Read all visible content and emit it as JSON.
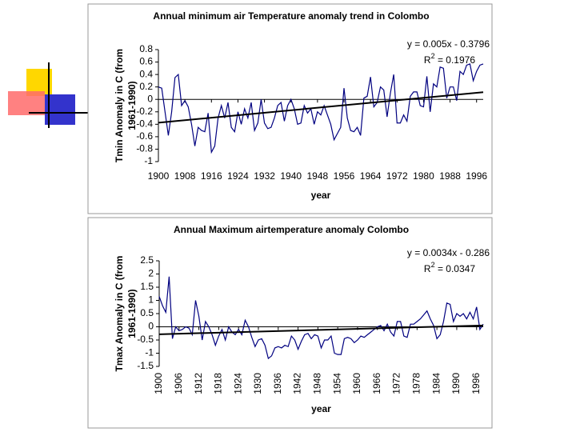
{
  "chart_data": [
    {
      "type": "line",
      "title": "Annual minimum air  Temperature anomaly trend in Colombo",
      "xlabel": "year",
      "ylabel": [
        "Tmin Anomaly  in C (from",
        "1961-1990)"
      ],
      "x": [
        1900,
        1901,
        1902,
        1903,
        1904,
        1905,
        1906,
        1907,
        1908,
        1909,
        1910,
        1911,
        1912,
        1913,
        1914,
        1915,
        1916,
        1917,
        1918,
        1919,
        1920,
        1921,
        1922,
        1923,
        1924,
        1925,
        1926,
        1927,
        1928,
        1929,
        1930,
        1931,
        1932,
        1933,
        1934,
        1935,
        1936,
        1937,
        1938,
        1939,
        1940,
        1941,
        1942,
        1943,
        1944,
        1945,
        1946,
        1947,
        1948,
        1949,
        1950,
        1951,
        1952,
        1953,
        1954,
        1955,
        1956,
        1957,
        1958,
        1959,
        1960,
        1961,
        1962,
        1963,
        1964,
        1965,
        1966,
        1967,
        1968,
        1969,
        1970,
        1971,
        1972,
        1973,
        1974,
        1975,
        1976,
        1977,
        1978,
        1979,
        1980,
        1981,
        1982,
        1983,
        1984,
        1985,
        1986,
        1987,
        1988,
        1989,
        1990,
        1991,
        1992,
        1993,
        1994,
        1995,
        1996,
        1997,
        1998
      ],
      "series": [
        {
          "name": "Tmin anomaly",
          "color": "#000080",
          "values": [
            0.2,
            0.18,
            -0.2,
            -0.58,
            -0.2,
            0.35,
            0.4,
            -0.1,
            -0.02,
            -0.12,
            -0.4,
            -0.75,
            -0.45,
            -0.5,
            -0.52,
            -0.22,
            -0.85,
            -0.75,
            -0.3,
            -0.1,
            -0.3,
            -0.05,
            -0.45,
            -0.52,
            -0.2,
            -0.4,
            -0.15,
            -0.3,
            -0.05,
            -0.5,
            -0.38,
            0.0,
            -0.38,
            -0.47,
            -0.45,
            -0.3,
            -0.1,
            -0.05,
            -0.35,
            -0.1,
            0.0,
            -0.15,
            -0.4,
            -0.38,
            -0.1,
            -0.22,
            -0.15,
            -0.4,
            -0.2,
            -0.25,
            -0.1,
            -0.25,
            -0.4,
            -0.65,
            -0.55,
            -0.45,
            0.18,
            -0.3,
            -0.5,
            -0.52,
            -0.45,
            -0.58,
            0.02,
            0.05,
            0.36,
            -0.12,
            -0.05,
            0.2,
            0.15,
            -0.28,
            0.1,
            0.4,
            -0.38,
            -0.38,
            -0.25,
            -0.35,
            0.05,
            0.12,
            0.12,
            -0.1,
            -0.12,
            0.37,
            -0.2,
            0.25,
            0.2,
            0.52,
            0.5,
            0.02,
            0.2,
            0.2,
            -0.02,
            0.45,
            0.4,
            0.55,
            0.57,
            0.3,
            0.45,
            0.55,
            0.57
          ]
        }
      ],
      "trend": {
        "slope": 0.005,
        "intercept": -0.3796,
        "color": "#000000",
        "label": "y = 0.005x - 0.3796",
        "r2_symbol": "R",
        "r2_exponent": "2",
        "r2_value": " = 0.1976"
      },
      "xlim": [
        1900,
        1998
      ],
      "xticks": [
        1900,
        1908,
        1916,
        1924,
        1932,
        1940,
        1948,
        1956,
        1964,
        1972,
        1980,
        1988,
        1996
      ],
      "xtick_rotation": 0,
      "ylim": [
        -1,
        0.8
      ],
      "yticks": [
        0.8,
        0.6,
        0.4,
        0.2,
        0,
        -0.2,
        -0.4,
        -0.6,
        -0.8,
        -1
      ],
      "grid": false
    },
    {
      "type": "line",
      "title": "Annual Maximum airtemperature anomaly Colombo",
      "xlabel": "year",
      "ylabel": [
        "Tmax Anomaly in C (from",
        "1961-1990)"
      ],
      "x": [
        1900,
        1901,
        1902,
        1903,
        1904,
        1905,
        1906,
        1907,
        1908,
        1909,
        1910,
        1911,
        1912,
        1913,
        1914,
        1915,
        1916,
        1917,
        1918,
        1919,
        1920,
        1921,
        1922,
        1923,
        1924,
        1925,
        1926,
        1927,
        1928,
        1929,
        1930,
        1931,
        1932,
        1933,
        1934,
        1935,
        1936,
        1937,
        1938,
        1939,
        1940,
        1941,
        1942,
        1943,
        1944,
        1945,
        1946,
        1947,
        1948,
        1949,
        1950,
        1951,
        1952,
        1953,
        1954,
        1955,
        1956,
        1957,
        1958,
        1959,
        1960,
        1961,
        1962,
        1963,
        1964,
        1965,
        1966,
        1967,
        1968,
        1969,
        1970,
        1971,
        1972,
        1973,
        1974,
        1975,
        1976,
        1977,
        1978,
        1979,
        1980,
        1981,
        1982,
        1983,
        1984,
        1985,
        1986,
        1987,
        1988,
        1989,
        1990,
        1991,
        1992,
        1993,
        1994,
        1995,
        1996,
        1997,
        1998
      ],
      "series": [
        {
          "name": "Tmax anomaly",
          "color": "#000080",
          "values": [
            1.15,
            0.8,
            0.55,
            1.9,
            -0.45,
            0.0,
            -0.15,
            -0.1,
            0.0,
            -0.05,
            -0.3,
            1.0,
            0.4,
            -0.5,
            0.2,
            0.0,
            -0.3,
            -0.7,
            -0.35,
            -0.1,
            -0.5,
            0.0,
            -0.2,
            -0.3,
            -0.1,
            -0.3,
            0.25,
            0.0,
            -0.4,
            -0.75,
            -0.5,
            -0.45,
            -0.7,
            -1.2,
            -1.1,
            -0.8,
            -0.75,
            -0.8,
            -0.7,
            -0.75,
            -0.35,
            -0.5,
            -0.85,
            -0.55,
            -0.3,
            -0.25,
            -0.45,
            -0.3,
            -0.35,
            -0.8,
            -0.5,
            -0.5,
            -0.35,
            -1.0,
            -1.05,
            -1.05,
            -0.45,
            -0.4,
            -0.45,
            -0.6,
            -0.5,
            -0.35,
            -0.4,
            -0.3,
            -0.2,
            -0.1,
            0.0,
            0.05,
            -0.15,
            0.1,
            -0.2,
            -0.35,
            0.2,
            0.2,
            -0.35,
            -0.4,
            0.1,
            0.1,
            0.2,
            0.3,
            0.45,
            0.6,
            0.3,
            0.05,
            -0.45,
            -0.3,
            0.2,
            0.9,
            0.85,
            0.2,
            0.5,
            0.4,
            0.5,
            0.3,
            0.55,
            0.3,
            0.75,
            -0.1,
            0.1
          ]
        }
      ],
      "trend": {
        "slope": 0.0034,
        "intercept": -0.286,
        "color": "#000000",
        "label": "y = 0.0034x - 0.286",
        "r2_symbol": "R",
        "r2_exponent": "2",
        "r2_value": " = 0.0347"
      },
      "xlim": [
        1900,
        1998
      ],
      "xticks": [
        1900,
        1906,
        1912,
        1918,
        1924,
        1930,
        1936,
        1942,
        1948,
        1954,
        1960,
        1966,
        1972,
        1978,
        1984,
        1990,
        1996
      ],
      "xtick_rotation": -90,
      "ylim": [
        -1.5,
        2.5
      ],
      "yticks": [
        2.5,
        2,
        1.5,
        1,
        0.5,
        0,
        -0.5,
        -1,
        -1.5
      ],
      "grid": false
    }
  ]
}
